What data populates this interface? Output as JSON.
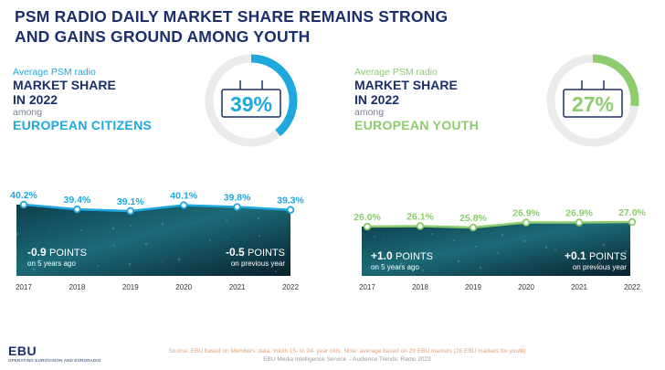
{
  "title": {
    "line1": "PSM RADIO DAILY MARKET SHARE REMAINS STRONG",
    "line2": "AND GAINS GROUND AMONG YOUTH"
  },
  "kpi_left": {
    "line1": "Average PSM radio",
    "line2a": "MARKET SHARE",
    "line2b": "IN 2022",
    "line3": "among",
    "line4": "EUROPEAN CITIZENS",
    "value": "39%",
    "color": "#1ea8de"
  },
  "kpi_right": {
    "line1": "Average PSM radio",
    "line2a": "MARKET SHARE",
    "line2b": "IN 2022",
    "line3": "among",
    "line4": "EUROPEAN YOUTH",
    "value": "27%",
    "color": "#8ccc6e"
  },
  "chart_data": [
    {
      "type": "line",
      "x": [
        "2017",
        "2018",
        "2019",
        "2020",
        "2021",
        "2022"
      ],
      "series": [
        {
          "values": [
            40.2,
            39.4,
            39.1,
            40.1,
            39.8,
            39.3
          ]
        }
      ],
      "data_labels": [
        "40.2%",
        "39.4%",
        "39.1%",
        "40.1%",
        "39.8%",
        "39.3%"
      ],
      "annotations": [
        {
          "big": "-0.9",
          "unit": "POINTS",
          "small": "on 5 years ago"
        },
        {
          "big": "-0.5",
          "unit": "POINTS",
          "small": "on previous year"
        }
      ],
      "color": "#1ea8de"
    },
    {
      "type": "line",
      "x": [
        "2017",
        "2018",
        "2019",
        "2020",
        "2021",
        "2022"
      ],
      "series": [
        {
          "values": [
            26.0,
            26.1,
            25.8,
            26.9,
            26.9,
            27.0
          ]
        }
      ],
      "data_labels": [
        "26.0%",
        "26.1%",
        "25.8%",
        "26.9%",
        "26.9%",
        "27.0%"
      ],
      "annotations": [
        {
          "big": "+1.0",
          "unit": "POINTS",
          "small": "on 5 years ago"
        },
        {
          "big": "+0.1",
          "unit": "POINTS",
          "small": "on previous year"
        }
      ],
      "color": "#8ccc6e"
    }
  ],
  "footer": {
    "source": "Source: EBU based on Members' data. Youth 15- to 24- year olds. Note: average based on 29 EBU markets (28 EBU markets for youth)",
    "service": "EBU Media Intelligence Service – Audience Trends: Radio 2023"
  },
  "logo": {
    "mark": "EBU",
    "sub": "OPERATING EUROVISION AND EURORADIO"
  }
}
